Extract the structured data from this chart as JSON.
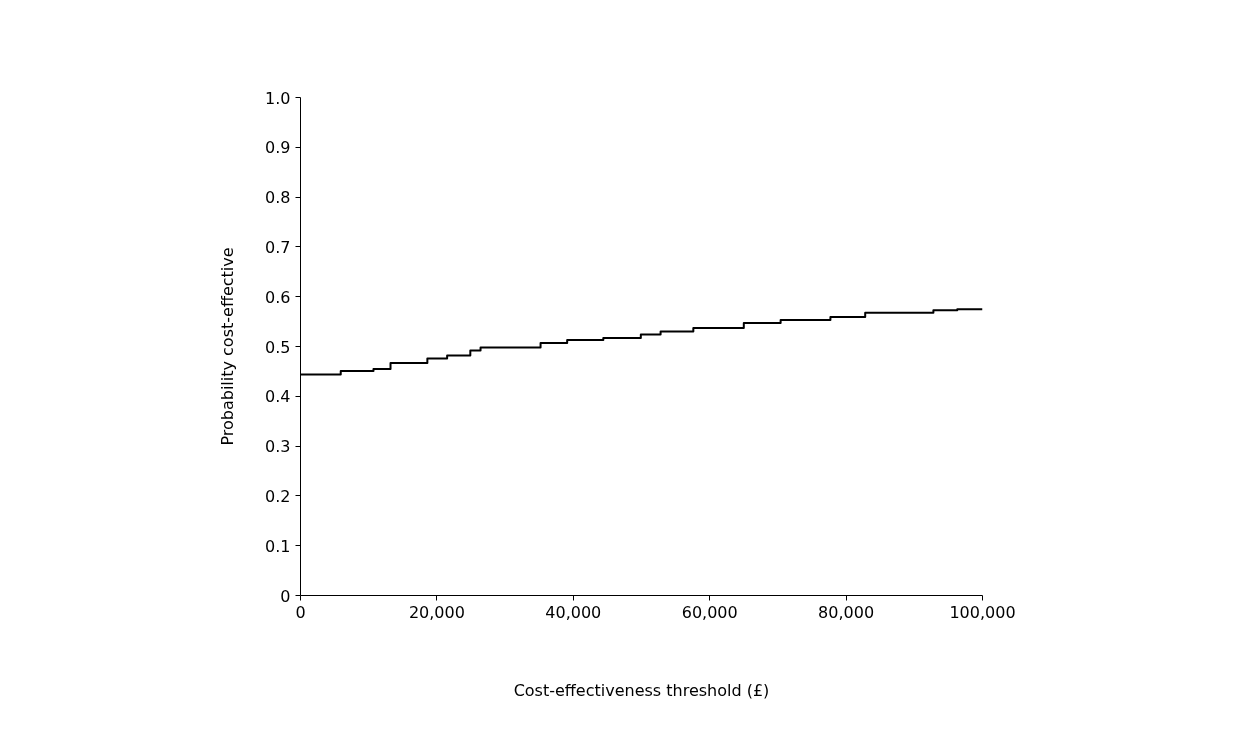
{
  "chart_data": {
    "type": "step",
    "xlabel": "Cost-effectiveness threshold (£)",
    "ylabel": "Probability cost-effective",
    "x": [
      0,
      4100,
      5900,
      10700,
      13200,
      15700,
      18600,
      21500,
      24900,
      26400,
      31200,
      35200,
      39100,
      43000,
      44400,
      47400,
      49900,
      52800,
      57600,
      65000,
      70400,
      72900,
      77700,
      82800,
      89900,
      92800,
      96300,
      100000
    ],
    "series": [
      {
        "color": "#000000",
        "values": [
          0.444,
          0.444,
          0.451,
          0.455,
          0.467,
          0.467,
          0.476,
          0.482,
          0.492,
          0.498,
          0.498,
          0.507,
          0.513,
          0.513,
          0.517,
          0.517,
          0.524,
          0.53,
          0.537,
          0.547,
          0.553,
          0.553,
          0.559,
          0.568,
          0.568,
          0.573,
          0.575,
          0.575
        ]
      }
    ],
    "xlim": [
      0,
      100000
    ],
    "xticks": [
      {
        "value": 0,
        "label": "0"
      },
      {
        "value": 20000,
        "label": "20,000"
      },
      {
        "value": 40000,
        "label": "40,000"
      },
      {
        "value": 60000,
        "label": "60,000"
      },
      {
        "value": 80000,
        "label": "80,000"
      },
      {
        "value": 100000,
        "label": "100,000"
      }
    ],
    "ylim": [
      0,
      1
    ],
    "yticks": [
      {
        "value": 0,
        "label": "0"
      },
      {
        "value": 0.1,
        "label": "0.1"
      },
      {
        "value": 0.2,
        "label": "0.2"
      },
      {
        "value": 0.3,
        "label": "0.3"
      },
      {
        "value": 0.4,
        "label": "0.4"
      },
      {
        "value": 0.5,
        "label": "0.5"
      },
      {
        "value": 0.6,
        "label": "0.6"
      },
      {
        "value": 0.7,
        "label": "0.7"
      },
      {
        "value": 0.8,
        "label": "0.8"
      },
      {
        "value": 0.9,
        "label": "0.9"
      },
      {
        "value": 1.0,
        "label": "1.0"
      }
    ],
    "grid": false
  }
}
